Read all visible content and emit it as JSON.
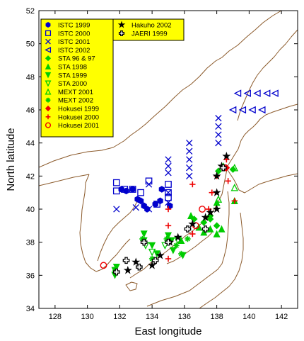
{
  "chart_data": {
    "type": "scatter",
    "xlabel": "East longitude",
    "ylabel": "North latitude",
    "xlim": [
      127,
      143
    ],
    "ylim": [
      34,
      52
    ],
    "x_ticks": [
      128,
      130,
      132,
      134,
      136,
      138,
      140,
      142
    ],
    "y_ticks": [
      34,
      36,
      38,
      40,
      42,
      44,
      46,
      48,
      50,
      52
    ],
    "grid": false,
    "legend_position": "top-left",
    "legend_background": "#ffff00",
    "coastline_color": "#8b5a2b",
    "series": [
      {
        "name": "ISTC 1999",
        "marker": "hexagon-filled",
        "color": "#0000cc",
        "points": [
          [
            132.1,
            41.2
          ],
          [
            132.4,
            41.1
          ],
          [
            132.8,
            41.2
          ],
          [
            133.1,
            40.6
          ],
          [
            133.3,
            40.5
          ],
          [
            133.5,
            40.2
          ],
          [
            133.7,
            40.0
          ],
          [
            134.2,
            40.3
          ],
          [
            134.5,
            40.5
          ],
          [
            135.1,
            40.2
          ],
          [
            134.6,
            41.2
          ]
        ]
      },
      {
        "name": "ISTC 2000",
        "marker": "square-open",
        "color": "#0000cc",
        "points": [
          [
            131.8,
            41.6
          ],
          [
            131.8,
            41.1
          ],
          [
            132.3,
            41.2
          ],
          [
            132.8,
            41.2
          ],
          [
            133.3,
            41.0
          ],
          [
            133.8,
            41.7
          ],
          [
            135.0,
            41.5
          ],
          [
            135.0,
            41.0
          ],
          [
            135.0,
            40.7
          ],
          [
            134.3,
            40.3
          ]
        ]
      },
      {
        "name": "ISTC 2001",
        "marker": "x",
        "color": "#0000cc",
        "points": [
          [
            131.8,
            40.0
          ],
          [
            133.0,
            40.1
          ],
          [
            133.8,
            40.0
          ],
          [
            133.8,
            41.5
          ],
          [
            135.0,
            43.0
          ],
          [
            135.0,
            42.6
          ],
          [
            135.0,
            42.2
          ],
          [
            135.0,
            41.0
          ],
          [
            135.0,
            40.4
          ],
          [
            136.3,
            44.0
          ],
          [
            136.3,
            43.5
          ],
          [
            136.3,
            43.0
          ],
          [
            136.3,
            42.5
          ],
          [
            136.3,
            42.0
          ],
          [
            138.1,
            45.5
          ],
          [
            138.1,
            45.0
          ],
          [
            138.1,
            44.5
          ],
          [
            138.1,
            44.0
          ]
        ]
      },
      {
        "name": "ISTC 2002",
        "marker": "triangle-left-open",
        "color": "#0000cc",
        "points": [
          [
            139.3,
            47.0
          ],
          [
            139.9,
            47.0
          ],
          [
            140.5,
            47.0
          ],
          [
            141.1,
            47.0
          ],
          [
            141.6,
            47.0
          ],
          [
            139.0,
            46.0
          ],
          [
            139.6,
            46.0
          ],
          [
            140.2,
            46.0
          ],
          [
            140.8,
            46.0
          ]
        ]
      },
      {
        "name": "STA 96 & 97",
        "marker": "diamond-filled",
        "color": "#00cc00",
        "points": [
          [
            136.6,
            39.4
          ],
          [
            137.2,
            39.2
          ],
          [
            137.6,
            39.4
          ],
          [
            138.0,
            39.0
          ],
          [
            138.1,
            42.3
          ],
          [
            139.0,
            42.4
          ],
          [
            137.6,
            39.6
          ]
        ]
      },
      {
        "name": "STA 1998",
        "marker": "triangle-up-filled",
        "color": "#00cc00",
        "points": [
          [
            136.4,
            39.6
          ],
          [
            136.9,
            38.9
          ],
          [
            137.2,
            38.6
          ],
          [
            137.6,
            38.8
          ],
          [
            138.0,
            38.5
          ],
          [
            138.3,
            38.8
          ],
          [
            138.0,
            40.4
          ],
          [
            138.4,
            42.6
          ],
          [
            139.1,
            40.5
          ],
          [
            135.8,
            38.1
          ]
        ]
      },
      {
        "name": "STA 1999",
        "marker": "triangle-down-filled",
        "color": "#00cc00",
        "points": [
          [
            131.8,
            36.5
          ],
          [
            131.7,
            36.3
          ],
          [
            133.5,
            38.5
          ],
          [
            133.5,
            38.1
          ],
          [
            134.0,
            37.8
          ],
          [
            134.3,
            37.3
          ],
          [
            135.0,
            38.4
          ],
          [
            135.2,
            38.1
          ],
          [
            135.3,
            37.5
          ],
          [
            135.9,
            37.2
          ],
          [
            131.7,
            36.0
          ]
        ]
      },
      {
        "name": "STA 2000",
        "marker": "triangle-down-open",
        "color": "#00cc00",
        "points": [
          [
            133.6,
            37.8
          ],
          [
            134.0,
            37.4
          ],
          [
            134.8,
            37.8
          ],
          [
            135.6,
            38.1
          ]
        ]
      },
      {
        "name": "MEXT 2001",
        "marker": "triangle-up-open",
        "color": "#00cc00",
        "points": [
          [
            139.1,
            42.5
          ],
          [
            139.1,
            41.3
          ],
          [
            138.1,
            40.6
          ]
        ]
      },
      {
        "name": "MEXT 2002",
        "marker": "asterisk",
        "color": "#00cc00",
        "points": [
          [
            131.7,
            36.2
          ],
          [
            133.4,
            38.2
          ],
          [
            134.0,
            37.0
          ],
          [
            134.9,
            38.2
          ],
          [
            135.5,
            37.8
          ],
          [
            135.8,
            37.3
          ],
          [
            136.2,
            38.2
          ]
        ]
      },
      {
        "name": "Hokusei 1999",
        "marker": "diamond-filled",
        "color": "#ee0000",
        "points": [
          [
            138.4,
            42.5
          ],
          [
            138.6,
            42.5
          ]
        ]
      },
      {
        "name": "Hokusei 2000",
        "marker": "plus",
        "color": "#ee0000",
        "points": [
          [
            135.0,
            40.0
          ],
          [
            135.0,
            39.0
          ],
          [
            135.0,
            37.0
          ],
          [
            136.5,
            41.5
          ],
          [
            136.5,
            38.5
          ],
          [
            137.7,
            41.0
          ],
          [
            137.5,
            40.0
          ],
          [
            138.0,
            42.0
          ],
          [
            138.6,
            43.0
          ],
          [
            138.7,
            41.7
          ],
          [
            139.1,
            40.5
          ]
        ]
      },
      {
        "name": "Hokusei 2001",
        "marker": "circle-open",
        "color": "#ee0000",
        "points": [
          [
            131.0,
            36.6
          ],
          [
            136.7,
            39.0
          ],
          [
            137.1,
            40.0
          ],
          [
            138.5,
            42.5
          ]
        ]
      },
      {
        "name": "Hakuho 2002",
        "marker": "star-filled",
        "color": "#000000",
        "points": [
          [
            132.5,
            36.3
          ],
          [
            133.0,
            36.8
          ],
          [
            134.0,
            36.6
          ],
          [
            134.5,
            37.2
          ],
          [
            135.1,
            38.0
          ],
          [
            135.6,
            38.3
          ],
          [
            136.5,
            39.1
          ],
          [
            137.3,
            39.5
          ],
          [
            137.6,
            39.8
          ],
          [
            138.0,
            40.0
          ],
          [
            138.0,
            41.0
          ],
          [
            138.0,
            42.0
          ],
          [
            138.6,
            43.2
          ],
          [
            138.3,
            42.6
          ]
        ]
      },
      {
        "name": "JAERI 1999",
        "marker": "cross-open",
        "color": "#000000",
        "points": [
          [
            131.8,
            36.2
          ],
          [
            132.4,
            36.9
          ],
          [
            133.2,
            36.5
          ],
          [
            133.5,
            38.0
          ],
          [
            134.2,
            36.9
          ],
          [
            135.0,
            38.0
          ],
          [
            136.2,
            38.8
          ],
          [
            137.3,
            38.8
          ],
          [
            138.4,
            42.5
          ]
        ]
      }
    ]
  }
}
